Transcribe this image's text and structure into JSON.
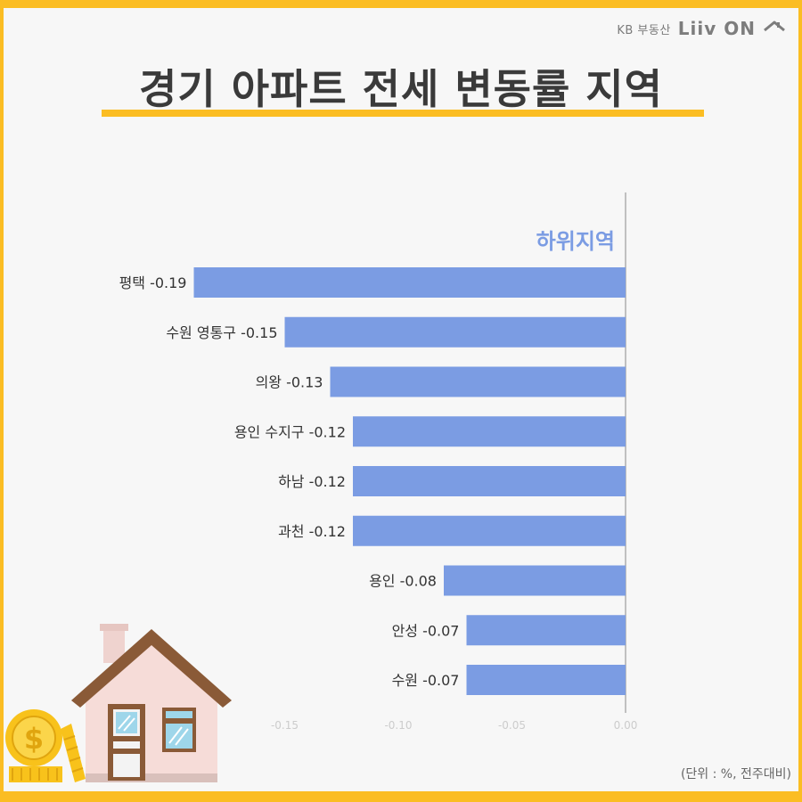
{
  "brand": {
    "kb": "KB 부동산",
    "app": "Liiv ON"
  },
  "title": "경기 아파트 전세 변동률 지역",
  "footnote": "(단위 : %, 전주대비)",
  "colors": {
    "accent": "#fbbd23",
    "bar": "#7b9ce3",
    "axis": "#888888"
  },
  "chart_data": {
    "type": "bar",
    "orientation": "horizontal",
    "title": "경기 아파트 전세 변동률 지역",
    "series_label": "하위지역",
    "categories": [
      "평택",
      "수원 영통구",
      "의왕",
      "용인 수지구",
      "하남",
      "과천",
      "용인",
      "안성",
      "수원"
    ],
    "values": [
      -0.19,
      -0.15,
      -0.13,
      -0.12,
      -0.12,
      -0.12,
      -0.08,
      -0.07,
      -0.07
    ],
    "bar_labels": [
      "평택 -0.19",
      "수원 영통구 -0.15",
      "의왕 -0.13",
      "용인 수지구 -0.12",
      "하남 -0.12",
      "과천 -0.12",
      "용인 -0.08",
      "안성 -0.07",
      "수원 -0.07"
    ],
    "xlim": [
      -0.2,
      0
    ],
    "xticks": [
      "-0.15",
      "-0.10",
      "-0.05",
      "0.00"
    ],
    "xtick_values": [
      -0.15,
      -0.1,
      -0.05,
      0
    ],
    "unit": "%",
    "grid": false,
    "legend": "none"
  }
}
